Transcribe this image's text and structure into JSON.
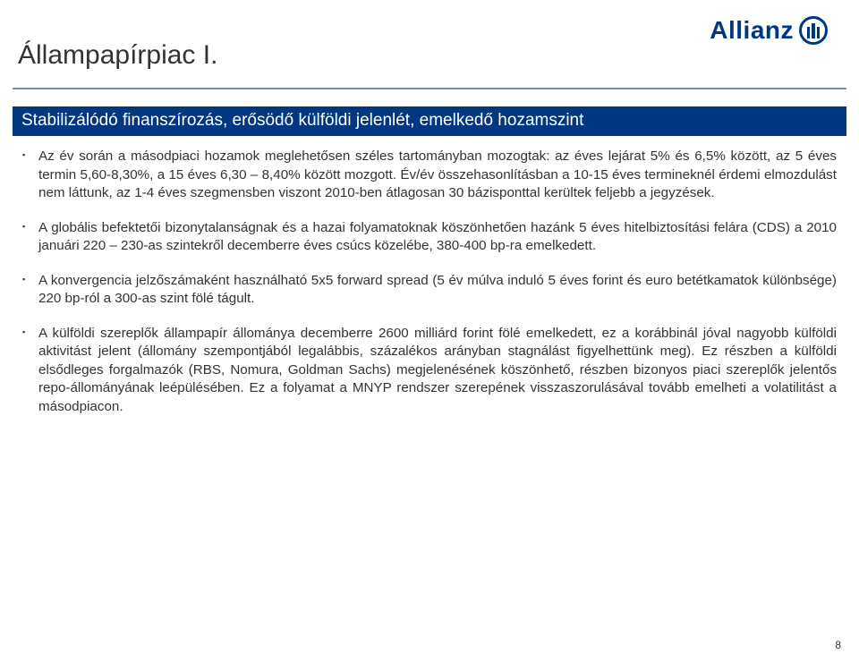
{
  "brand": {
    "name": "Allianz",
    "color": "#003781"
  },
  "page": {
    "title": "Állampapírpiac I.",
    "subtitle": "Stabilizálódó finanszírozás, erősödő külföldi jelenlét, emelkedő hozamszint",
    "number": "8",
    "title_color": "#333333",
    "subtitle_bg": "#003781",
    "subtitle_fg": "#ffffff",
    "background": "#ffffff"
  },
  "bullets": [
    "Az év során a másodpiaci hozamok meglehetősen széles tartományban mozogtak: az éves lejárat 5% és 6,5% között, az 5 éves termin 5,60-8,30%, a 15 éves 6,30 – 8,40% között mozgott. Év/év összehasonlításban a 10-15 éves termineknél érdemi elmozdulást nem láttunk, az 1-4 éves szegmensben viszont 2010-ben átlagosan 30 bázisponttal kerültek feljebb a jegyzések.",
    "A globális befektetői bizonytalanságnak és a hazai folyamatoknak köszönhetően hazánk 5 éves hitelbiztosítási felára (CDS) a 2010 januári 220 – 230-as szintekről decemberre éves csúcs közelébe, 380-400 bp-ra emelkedett.",
    "A konvergencia jelzőszámaként használható 5x5 forward spread (5 év múlva induló 5 éves forint és euro betétkamatok különbsége) 220 bp-ról a 300-as szint fölé tágult.",
    "A külföldi szereplők állampapír állománya decemberre 2600 milliárd forint fölé emelkedett, ez a korábbinál jóval nagyobb külföldi aktivitást jelent (állomány szempontjából legalábbis, százalékos arányban stagnálást figyelhettünk meg). Ez részben a külföldi elsődleges forgalmazók (RBS, Nomura, Goldman Sachs) megjelenésének köszönhető, részben bizonyos piaci szereplők jelentős repo-állományának leépülésében. Ez a folyamat a MNYP rendszer szerepének visszaszorulásával tovább emelheti a volatilitást a másodpiacon."
  ]
}
